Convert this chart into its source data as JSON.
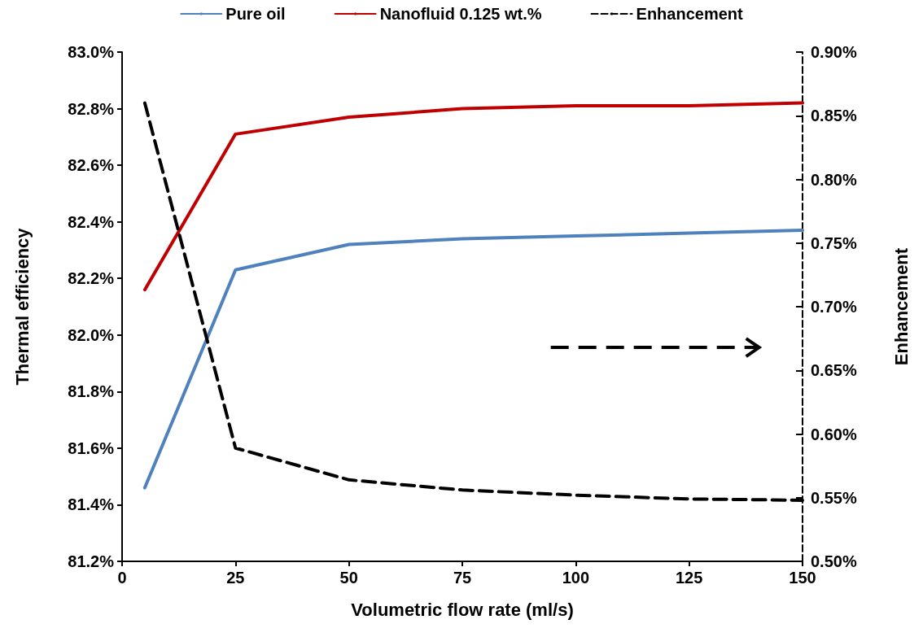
{
  "chart_data": {
    "type": "line",
    "xlabel": "Volumetric flow rate (ml/s)",
    "ylabel": "Thermal efficiency",
    "y2label": "Enhancement",
    "x": [
      5,
      25,
      50,
      75,
      100,
      125,
      150
    ],
    "series": [
      {
        "name": "Pure oil",
        "color": "#4f81bd",
        "values": [
          81.46,
          82.23,
          82.32,
          82.34,
          82.35,
          82.36,
          82.37
        ]
      },
      {
        "name": "Nanofluid 0.125 wt.%",
        "color": "#c00000",
        "values": [
          82.16,
          82.71,
          82.77,
          82.8,
          82.81,
          82.81,
          82.82
        ]
      },
      {
        "name": "Enhancement",
        "color": "#000000",
        "line_style": "dashed",
        "axis": "y2",
        "values": [
          0.86,
          0.589,
          0.564,
          0.556,
          0.552,
          0.549,
          0.548
        ]
      }
    ],
    "xlim": [
      0,
      150
    ],
    "xticks": [
      0,
      25,
      50,
      75,
      100,
      125,
      150
    ],
    "ylim": [
      81.2,
      83.0
    ],
    "yticks": [
      {
        "value": 81.2,
        "label": "81.2%"
      },
      {
        "value": 81.4,
        "label": "81.4%"
      },
      {
        "value": 81.6,
        "label": "81.6%"
      },
      {
        "value": 81.8,
        "label": "81.8%"
      },
      {
        "value": 82.0,
        "label": "82.0%"
      },
      {
        "value": 82.2,
        "label": "82.2%"
      },
      {
        "value": 82.4,
        "label": "82.4%"
      },
      {
        "value": 82.6,
        "label": "82.6%"
      },
      {
        "value": 82.8,
        "label": "82.8%"
      },
      {
        "value": 83.0,
        "label": "83.0%"
      }
    ],
    "y2lim": [
      0.5,
      0.9
    ],
    "y2ticks": [
      {
        "value": 0.5,
        "label": "0.50%"
      },
      {
        "value": 0.55,
        "label": "0.55%"
      },
      {
        "value": 0.6,
        "label": "0.60%"
      },
      {
        "value": 0.65,
        "label": "0.65%"
      },
      {
        "value": 0.7,
        "label": "0.70%"
      },
      {
        "value": 0.75,
        "label": "0.75%"
      },
      {
        "value": 0.8,
        "label": "0.80%"
      },
      {
        "value": 0.85,
        "label": "0.85%"
      },
      {
        "value": 0.9,
        "label": "0.90%"
      }
    ],
    "legend": "top",
    "grid": false,
    "marker": "none"
  }
}
